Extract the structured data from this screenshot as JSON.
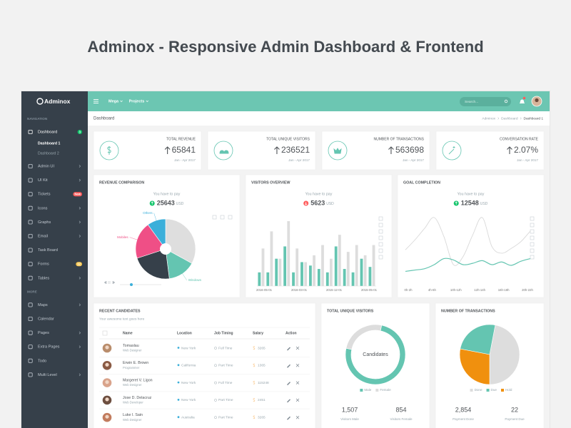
{
  "title": "Adminox - Responsive Admin Dashboard & Frontend",
  "brand": "Adminox",
  "topbar": {
    "menus": [
      "Mega",
      "Projects"
    ],
    "search_placeholder": "Search..."
  },
  "sidebar": {
    "sections": [
      {
        "heading": "NAVIGATION",
        "items": [
          {
            "label": "Dashboard",
            "badge": "3",
            "badge_color": "#10c469",
            "active": true,
            "children": [
              "Dashboard 1",
              "Dashboard 2"
            ]
          },
          {
            "label": "Admin UI",
            "has_submenu": true
          },
          {
            "label": "UI Kit",
            "has_submenu": true
          },
          {
            "label": "Tickets",
            "badge": "New",
            "badge_color": "#ff5b5b"
          },
          {
            "label": "Icons",
            "has_submenu": true
          },
          {
            "label": "Graphs",
            "has_submenu": true
          },
          {
            "label": "Email",
            "has_submenu": true
          },
          {
            "label": "Task Board"
          },
          {
            "label": "Forms",
            "badge": "12",
            "badge_color": "#f9c851"
          },
          {
            "label": "Tables",
            "has_submenu": true
          }
        ]
      },
      {
        "heading": "MORE",
        "items": [
          {
            "label": "Maps",
            "has_submenu": true
          },
          {
            "label": "Calendar"
          },
          {
            "label": "Pages",
            "has_submenu": true
          },
          {
            "label": "Extra Pages",
            "has_submenu": true
          },
          {
            "label": "Todo"
          },
          {
            "label": "Multi Level",
            "has_submenu": true
          }
        ]
      }
    ]
  },
  "breadcrumb": {
    "page": "Dashboard",
    "trail": [
      "Adminox",
      "Dashboard",
      "Dashboard 1"
    ]
  },
  "stats": [
    {
      "label": "TOTAL REVENUE",
      "value": "65841",
      "period": "Jan - Apr 2017"
    },
    {
      "label": "TOTAL UNIQUE VISITORS",
      "value": "236521",
      "period": "Jan - Apr 2017"
    },
    {
      "label": "NUMBER OF TRANSACTIONS",
      "value": "563698",
      "period": "Jan - Apr 2017"
    },
    {
      "label": "CONVERSATION RATE",
      "value": "2.07%",
      "period": "Jan - Apr 2017"
    }
  ],
  "revenue_comparison": {
    "title": "REVENUE COMPARISON",
    "caption": "You have to pay",
    "amount": "25643",
    "currency": "USD",
    "trend": "up",
    "chart_data": {
      "type": "pie",
      "series": [
        {
          "color": "#dedede",
          "value": 33
        },
        {
          "name": "Windows",
          "color": "#64c5b1",
          "value": 15
        },
        {
          "color": "#36404a",
          "value": 22
        },
        {
          "name": "Mobiles",
          "color": "#ef4f86",
          "value": 20
        },
        {
          "name": "Others",
          "color": "#3bafda",
          "value": 10
        }
      ]
    }
  },
  "visitors_overview": {
    "title": "VISITORS OVERVIEW",
    "caption": "You have to pay",
    "amount": "5623",
    "currency": "USD",
    "trend": "down",
    "chart_data": {
      "type": "bar",
      "x_labels": [
        "2016-05-01",
        "2016-03-01",
        "2015-12-01",
        "2015-05-01"
      ],
      "series": [
        {
          "color": "#64c5b1",
          "values": [
            20,
            20,
            40,
            58,
            20,
            35,
            30,
            25,
            20,
            58,
            25,
            20,
            40,
            28
          ]
        },
        {
          "color": "#dddddd",
          "values": [
            55,
            80,
            40,
            95,
            55,
            35,
            45,
            60,
            40,
            75,
            50,
            60,
            45,
            60
          ]
        }
      ]
    }
  },
  "goal_completion": {
    "title": "GOAL COMPLETION",
    "caption": "You have to pay",
    "amount": "12548",
    "currency": "USD",
    "trend": "up",
    "chart_data": {
      "type": "line",
      "x_labels": [
        "0h-2h",
        "4h-6h",
        "10h-12h",
        "12h-14h",
        "16h-18h",
        "20h-22h"
      ],
      "series": [
        {
          "color": "#d9d9d9",
          "values": [
            40,
            55,
            72,
            88,
            60,
            18,
            30,
            62,
            88,
            45,
            35,
            42,
            52,
            68
          ]
        },
        {
          "color": "#64c5b1",
          "values": [
            8,
            10,
            12,
            18,
            27,
            25,
            18,
            20,
            24,
            18,
            22,
            17,
            23,
            27
          ]
        }
      ]
    }
  },
  "recent_candidates": {
    "title": "RECENT CANDIDATES",
    "subtitle": "Your awesome text goes here",
    "columns": [
      "Name",
      "Location",
      "Job Timing",
      "Salary",
      "Action"
    ],
    "rows": [
      [
        "Tomaslau",
        "Web Designer",
        "New York",
        "Full Time",
        "3265"
      ],
      [
        "Erwin E. Brown",
        "Programmer",
        "California",
        "Part Time",
        "1365"
      ],
      [
        "Margeret V. Ligon",
        "Web Designer",
        "New York",
        "Full Time",
        "115248"
      ],
      [
        "Jose D. Delacruz",
        "Web Developer",
        "New York",
        "Part Time",
        "2451"
      ],
      [
        "Luke I. Sain",
        "Web Designer",
        "Australia",
        "Part Time",
        "3265"
      ]
    ]
  },
  "unique_visitors": {
    "title": "TOTAL UNIQUE VISITORS",
    "center_label": "Candidates",
    "chart_data": {
      "type": "donut",
      "series": [
        {
          "name": "Male",
          "color": "#64c5b1",
          "value": 75
        },
        {
          "name": "Female",
          "color": "#dddddd",
          "value": 25
        }
      ]
    },
    "stats": [
      {
        "value": "1,507",
        "label": "Visitors Male"
      },
      {
        "value": "854",
        "label": "Visitors Female"
      }
    ]
  },
  "transactions": {
    "title": "NUMBER OF TRANSACTIONS",
    "chart_data": {
      "type": "pie",
      "series": [
        {
          "name": "Done",
          "color": "#dddddd",
          "value": 47
        },
        {
          "name": "Due",
          "color": "#64c5b1",
          "value": 25
        },
        {
          "name": "Hold",
          "color": "#f0900e",
          "value": 28
        }
      ]
    },
    "stats": [
      {
        "value": "2,854",
        "label": "Payment Done"
      },
      {
        "value": "22",
        "label": "Payment Due"
      }
    ]
  }
}
